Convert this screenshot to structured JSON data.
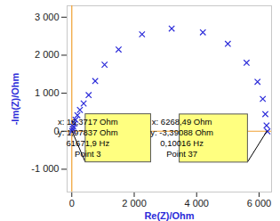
{
  "chart_data": {
    "type": "scatter",
    "x_label": "Re(Z)/Ohm",
    "y_label": "-Im(Z)/Ohm",
    "xlim": [
      -150,
      6400
    ],
    "ylim": [
      -1600,
      3300
    ],
    "xticks": [
      0,
      {
        "value": 2000,
        "label": "2 000"
      },
      {
        "value": 4000,
        "label": "4 000"
      },
      {
        "value": 6000,
        "label": "6 000"
      }
    ],
    "yticks": [
      {
        "value": -1000,
        "label": "-1 000"
      },
      0,
      {
        "value": 1000,
        "label": "1 000"
      },
      {
        "value": 2000,
        "label": "2 000"
      },
      {
        "value": 3000,
        "label": "3 000"
      }
    ],
    "grid": false,
    "series": [
      {
        "color": "#2b2bd9",
        "marker": "x",
        "x": [
          16.3717,
          30,
          50,
          80,
          120,
          180,
          260,
          380,
          540,
          750,
          1050,
          1500,
          2250,
          3200,
          4200,
          5000,
          5600,
          5950,
          6120,
          6200,
          6240,
          6268.49
        ],
        "values": [
          1.97837,
          60,
          120,
          200,
          300,
          420,
          560,
          730,
          950,
          1320,
          1750,
          2150,
          2550,
          2700,
          2600,
          2300,
          1800,
          1300,
          850,
          450,
          150,
          -3.39088
        ]
      }
    ],
    "annotations": [
      {
        "x": 16.3717,
        "y": 1.97837,
        "lines": [
          "x: 16,3717 Ohm",
          "y: 1,97837 Ohm",
          "61671,9 Hz",
          "Point 3"
        ]
      },
      {
        "x": 6268.49,
        "y": -3.39088,
        "lines": [
          "x: 6268,49 Ohm",
          "y: -3,39088 Ohm",
          "0,10016 Hz",
          "Point 37"
        ]
      }
    ]
  }
}
